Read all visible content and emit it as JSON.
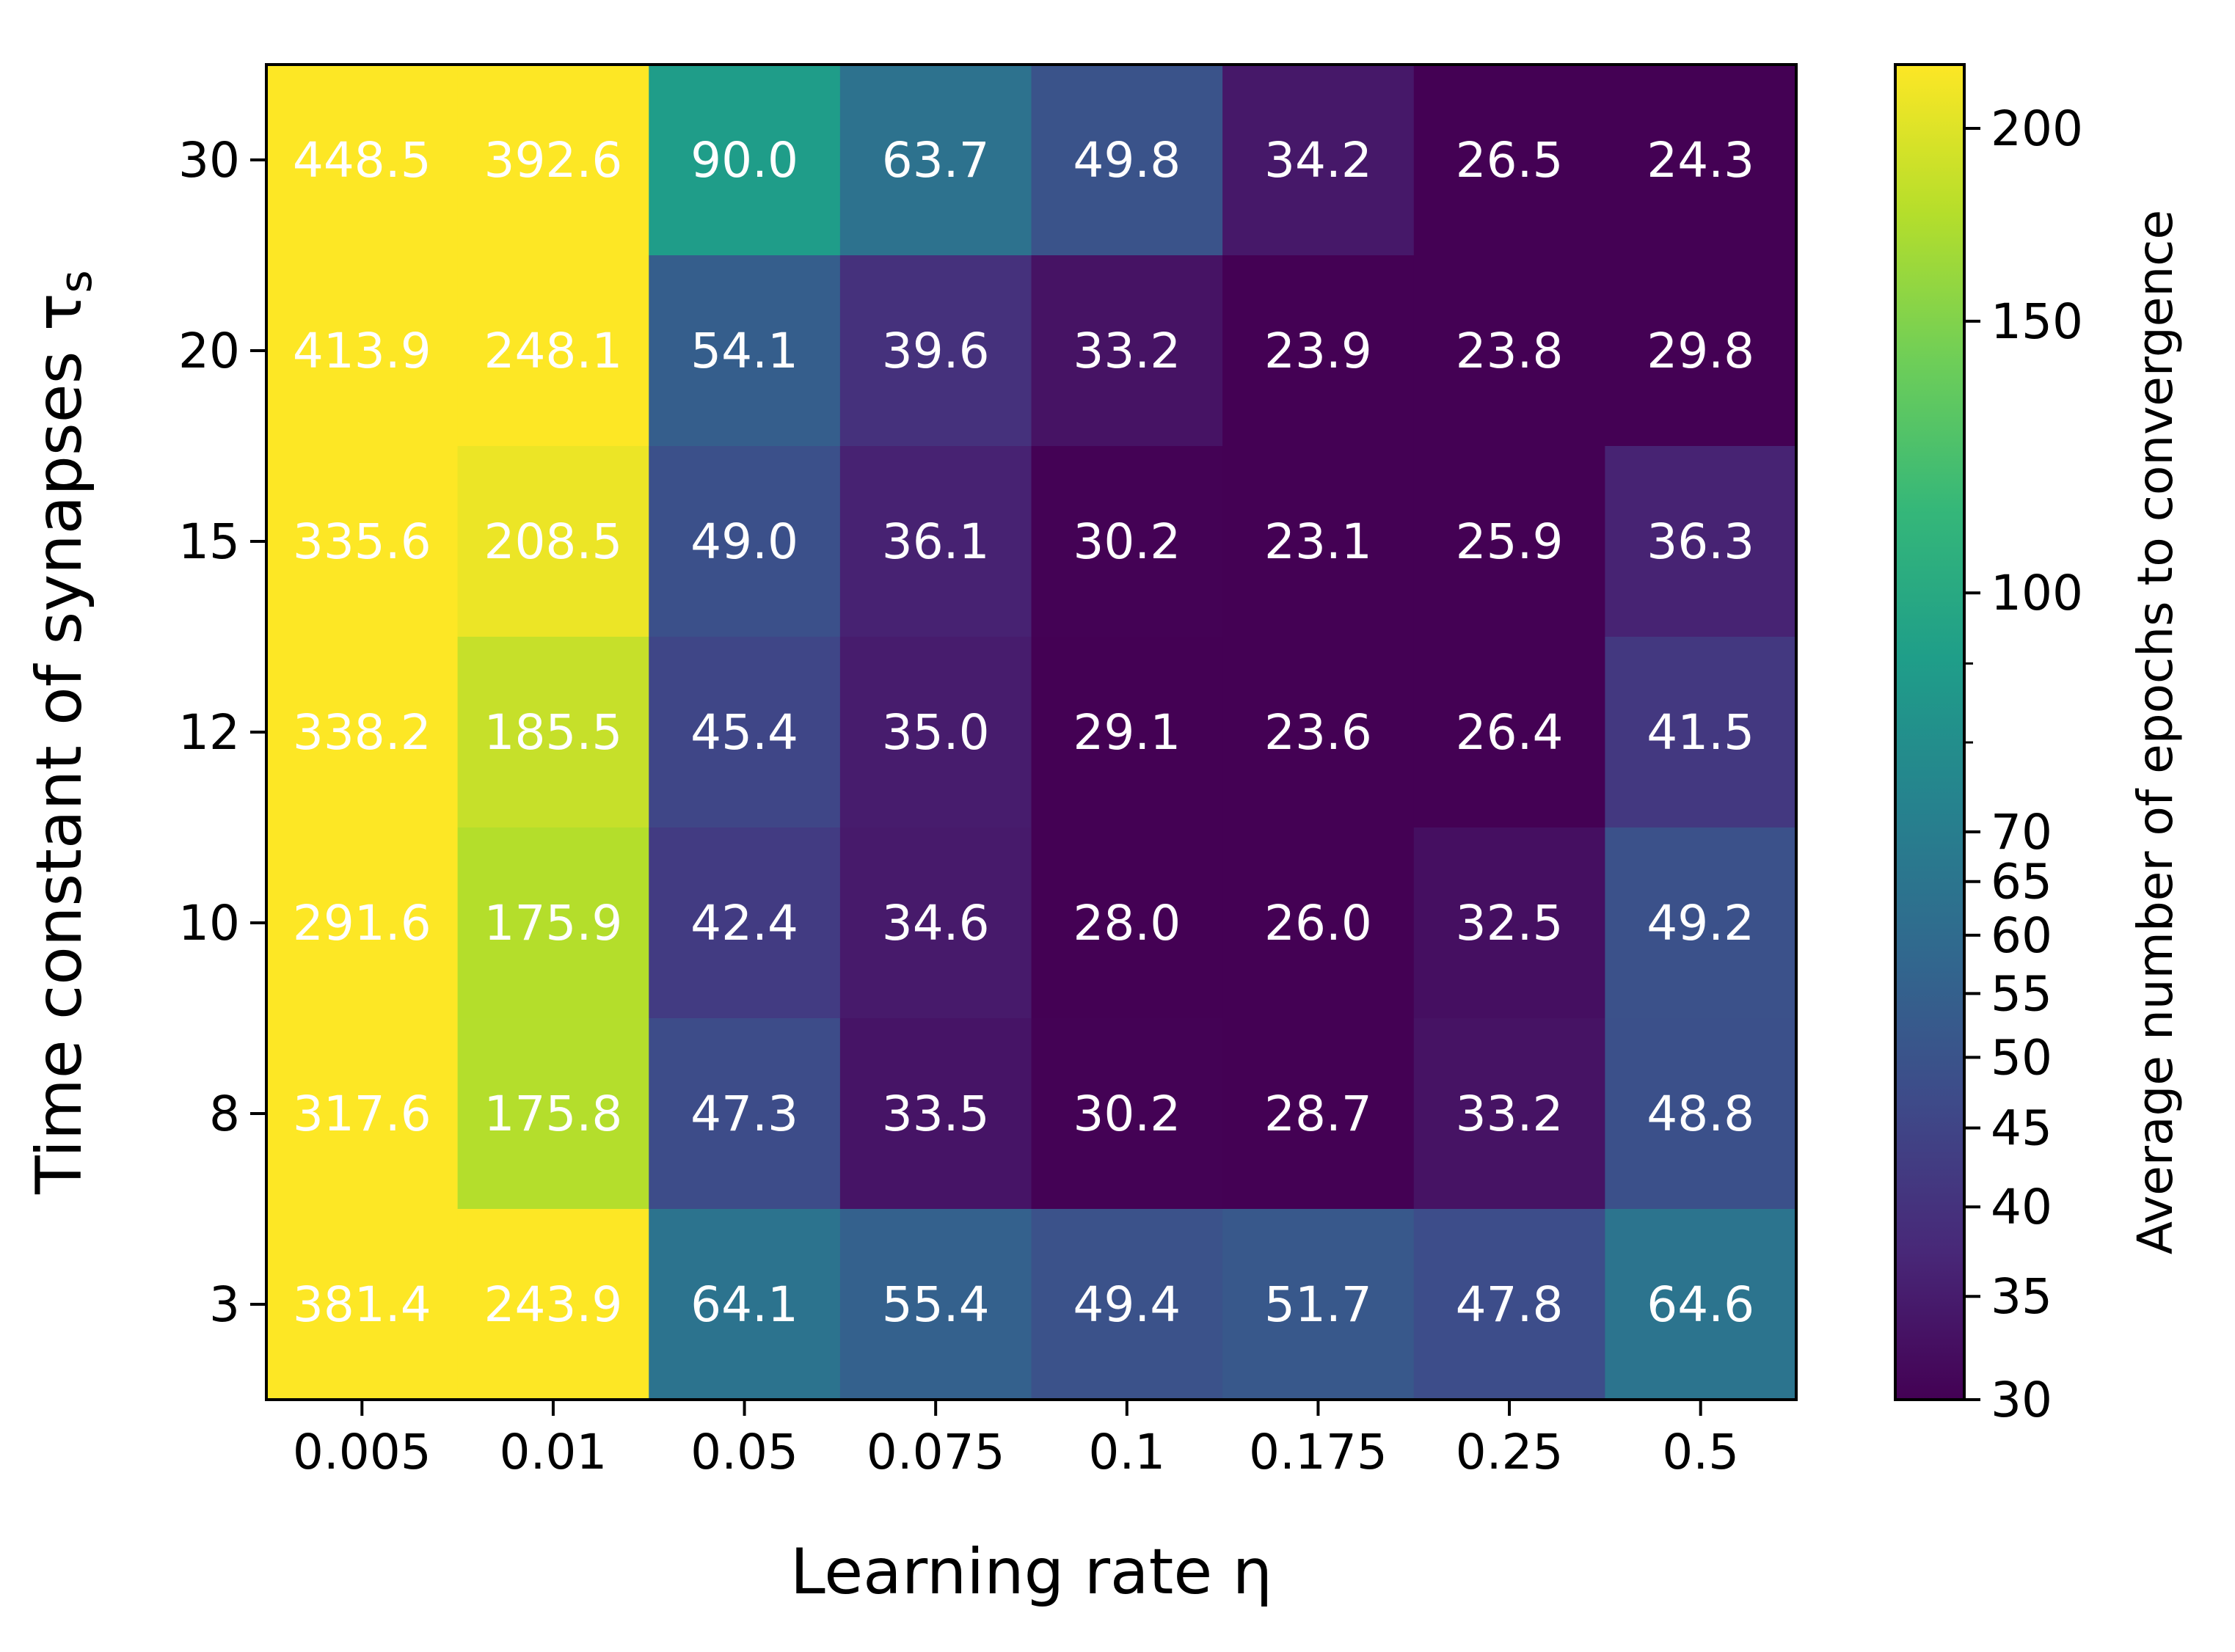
{
  "chart_data": {
    "type": "heatmap",
    "xlabel": "Learning rate η",
    "ylabel": "Time constant of synapses τ",
    "ylabel_subscript": "s",
    "colorbar_label": "Average number of epochs to convergence",
    "x_categories": [
      "0.005",
      "0.01",
      "0.05",
      "0.075",
      "0.1",
      "0.175",
      "0.25",
      "0.5"
    ],
    "y_categories": [
      "30",
      "20",
      "15",
      "12",
      "10",
      "8",
      "3"
    ],
    "values": [
      [
        448.5,
        392.6,
        90.0,
        63.7,
        49.8,
        34.2,
        26.5,
        24.3
      ],
      [
        413.9,
        248.1,
        54.1,
        39.6,
        33.2,
        23.9,
        23.8,
        29.8
      ],
      [
        335.6,
        208.5,
        49.0,
        36.1,
        30.2,
        23.1,
        25.9,
        36.3
      ],
      [
        338.2,
        185.5,
        45.4,
        35.0,
        29.1,
        23.6,
        26.4,
        41.5
      ],
      [
        291.6,
        175.9,
        42.4,
        34.6,
        28.0,
        26.0,
        32.5,
        49.2
      ],
      [
        317.6,
        175.8,
        47.3,
        33.5,
        30.2,
        28.7,
        33.2,
        48.8
      ],
      [
        381.4,
        243.9,
        64.1,
        55.4,
        49.4,
        51.7,
        47.8,
        64.6
      ]
    ],
    "cell_labels": [
      [
        "448.5",
        "392.6",
        "90.0",
        "63.7",
        "49.8",
        "34.2",
        "26.5",
        "24.3"
      ],
      [
        "413.9",
        "248.1",
        "54.1",
        "39.6",
        "33.2",
        "23.9",
        "23.8",
        "29.8"
      ],
      [
        "335.6",
        "208.5",
        "49.0",
        "36.1",
        "30.2",
        "23.1",
        "25.9",
        "36.3"
      ],
      [
        "338.2",
        "185.5",
        "45.4",
        "35.0",
        "29.1",
        "23.6",
        "26.4",
        "41.5"
      ],
      [
        "291.6",
        "175.9",
        "42.4",
        "34.6",
        "28.0",
        "26.0",
        "32.5",
        "49.2"
      ],
      [
        "317.6",
        "175.8",
        "47.3",
        "33.5",
        "30.2",
        "28.7",
        "33.2",
        "48.8"
      ],
      [
        "381.4",
        "243.9",
        "64.1",
        "55.4",
        "49.4",
        "51.7",
        "47.8",
        "64.6"
      ]
    ],
    "colormap": "viridis",
    "color_scale": "log",
    "color_range": [
      30,
      220
    ],
    "colorbar_ticks": [
      30,
      35,
      40,
      45,
      50,
      55,
      60,
      65,
      70,
      100,
      150,
      200
    ],
    "colorbar_minor_ticks": [
      80,
      90
    ],
    "grid": false,
    "colors": {
      "viridis_stops": [
        "#440154",
        "#482878",
        "#3e4a89",
        "#31688e",
        "#26828e",
        "#1f9e89",
        "#35b779",
        "#6ece58",
        "#b5de2b",
        "#fde725"
      ],
      "cell_text": "#ffffff",
      "frame": "#000000"
    }
  }
}
